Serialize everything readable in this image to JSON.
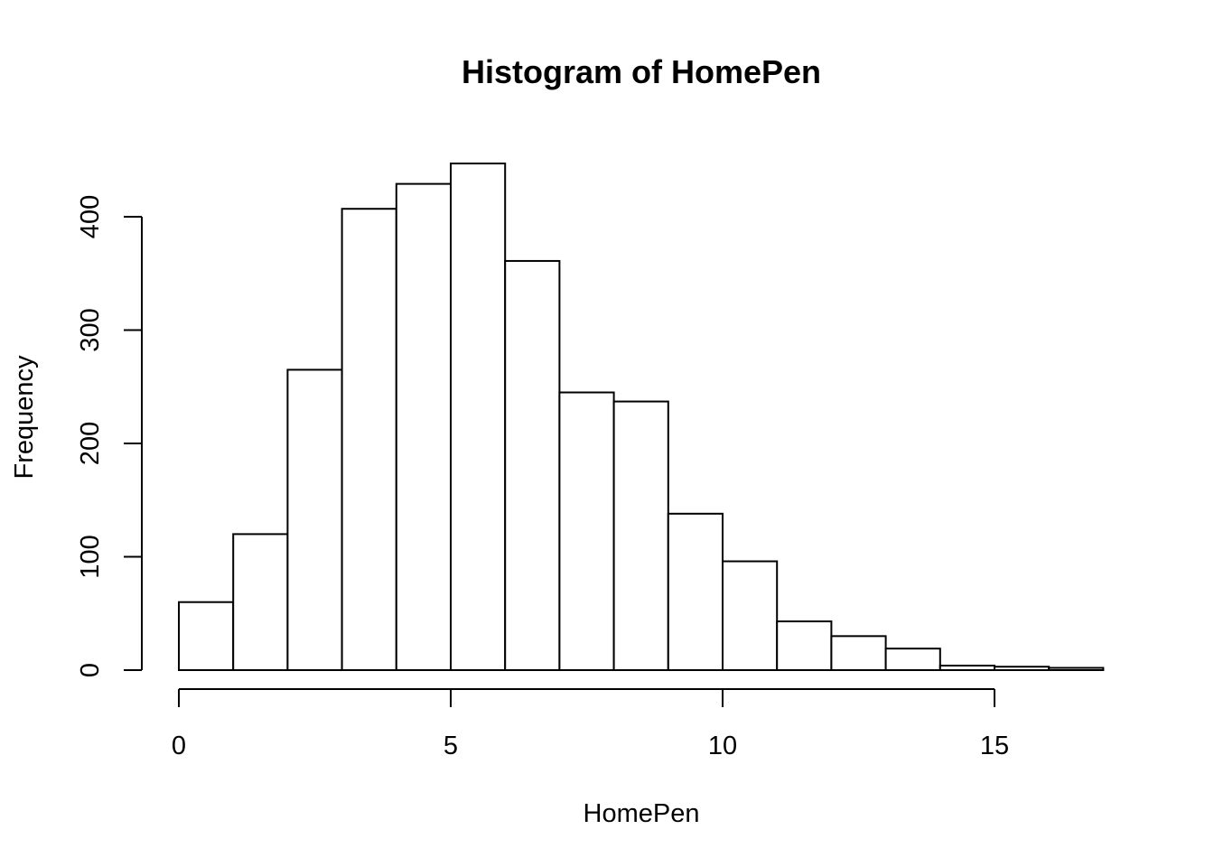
{
  "chart_data": {
    "type": "bar",
    "title": "Histogram of HomePen",
    "xlabel": "HomePen",
    "ylabel": "Frequency",
    "bins": [
      {
        "start": 0,
        "end": 1,
        "count": 60
      },
      {
        "start": 1,
        "end": 2,
        "count": 120
      },
      {
        "start": 2,
        "end": 3,
        "count": 265
      },
      {
        "start": 3,
        "end": 4,
        "count": 407
      },
      {
        "start": 4,
        "end": 5,
        "count": 429
      },
      {
        "start": 5,
        "end": 6,
        "count": 447
      },
      {
        "start": 6,
        "end": 7,
        "count": 361
      },
      {
        "start": 7,
        "end": 8,
        "count": 245
      },
      {
        "start": 8,
        "end": 9,
        "count": 237
      },
      {
        "start": 9,
        "end": 10,
        "count": 138
      },
      {
        "start": 10,
        "end": 11,
        "count": 96
      },
      {
        "start": 11,
        "end": 12,
        "count": 43
      },
      {
        "start": 12,
        "end": 13,
        "count": 30
      },
      {
        "start": 13,
        "end": 14,
        "count": 19
      },
      {
        "start": 14,
        "end": 15,
        "count": 4
      },
      {
        "start": 15,
        "end": 16,
        "count": 3
      },
      {
        "start": 16,
        "end": 17,
        "count": 2
      }
    ],
    "x_ticks": [
      "0",
      "5",
      "10",
      "15"
    ],
    "y_ticks": [
      "0",
      "100",
      "200",
      "300",
      "400"
    ],
    "xlim": [
      0,
      17
    ],
    "ylim": [
      0,
      447
    ],
    "grid": false,
    "bar_fill": "#ffffff",
    "bar_stroke": "#000000"
  }
}
